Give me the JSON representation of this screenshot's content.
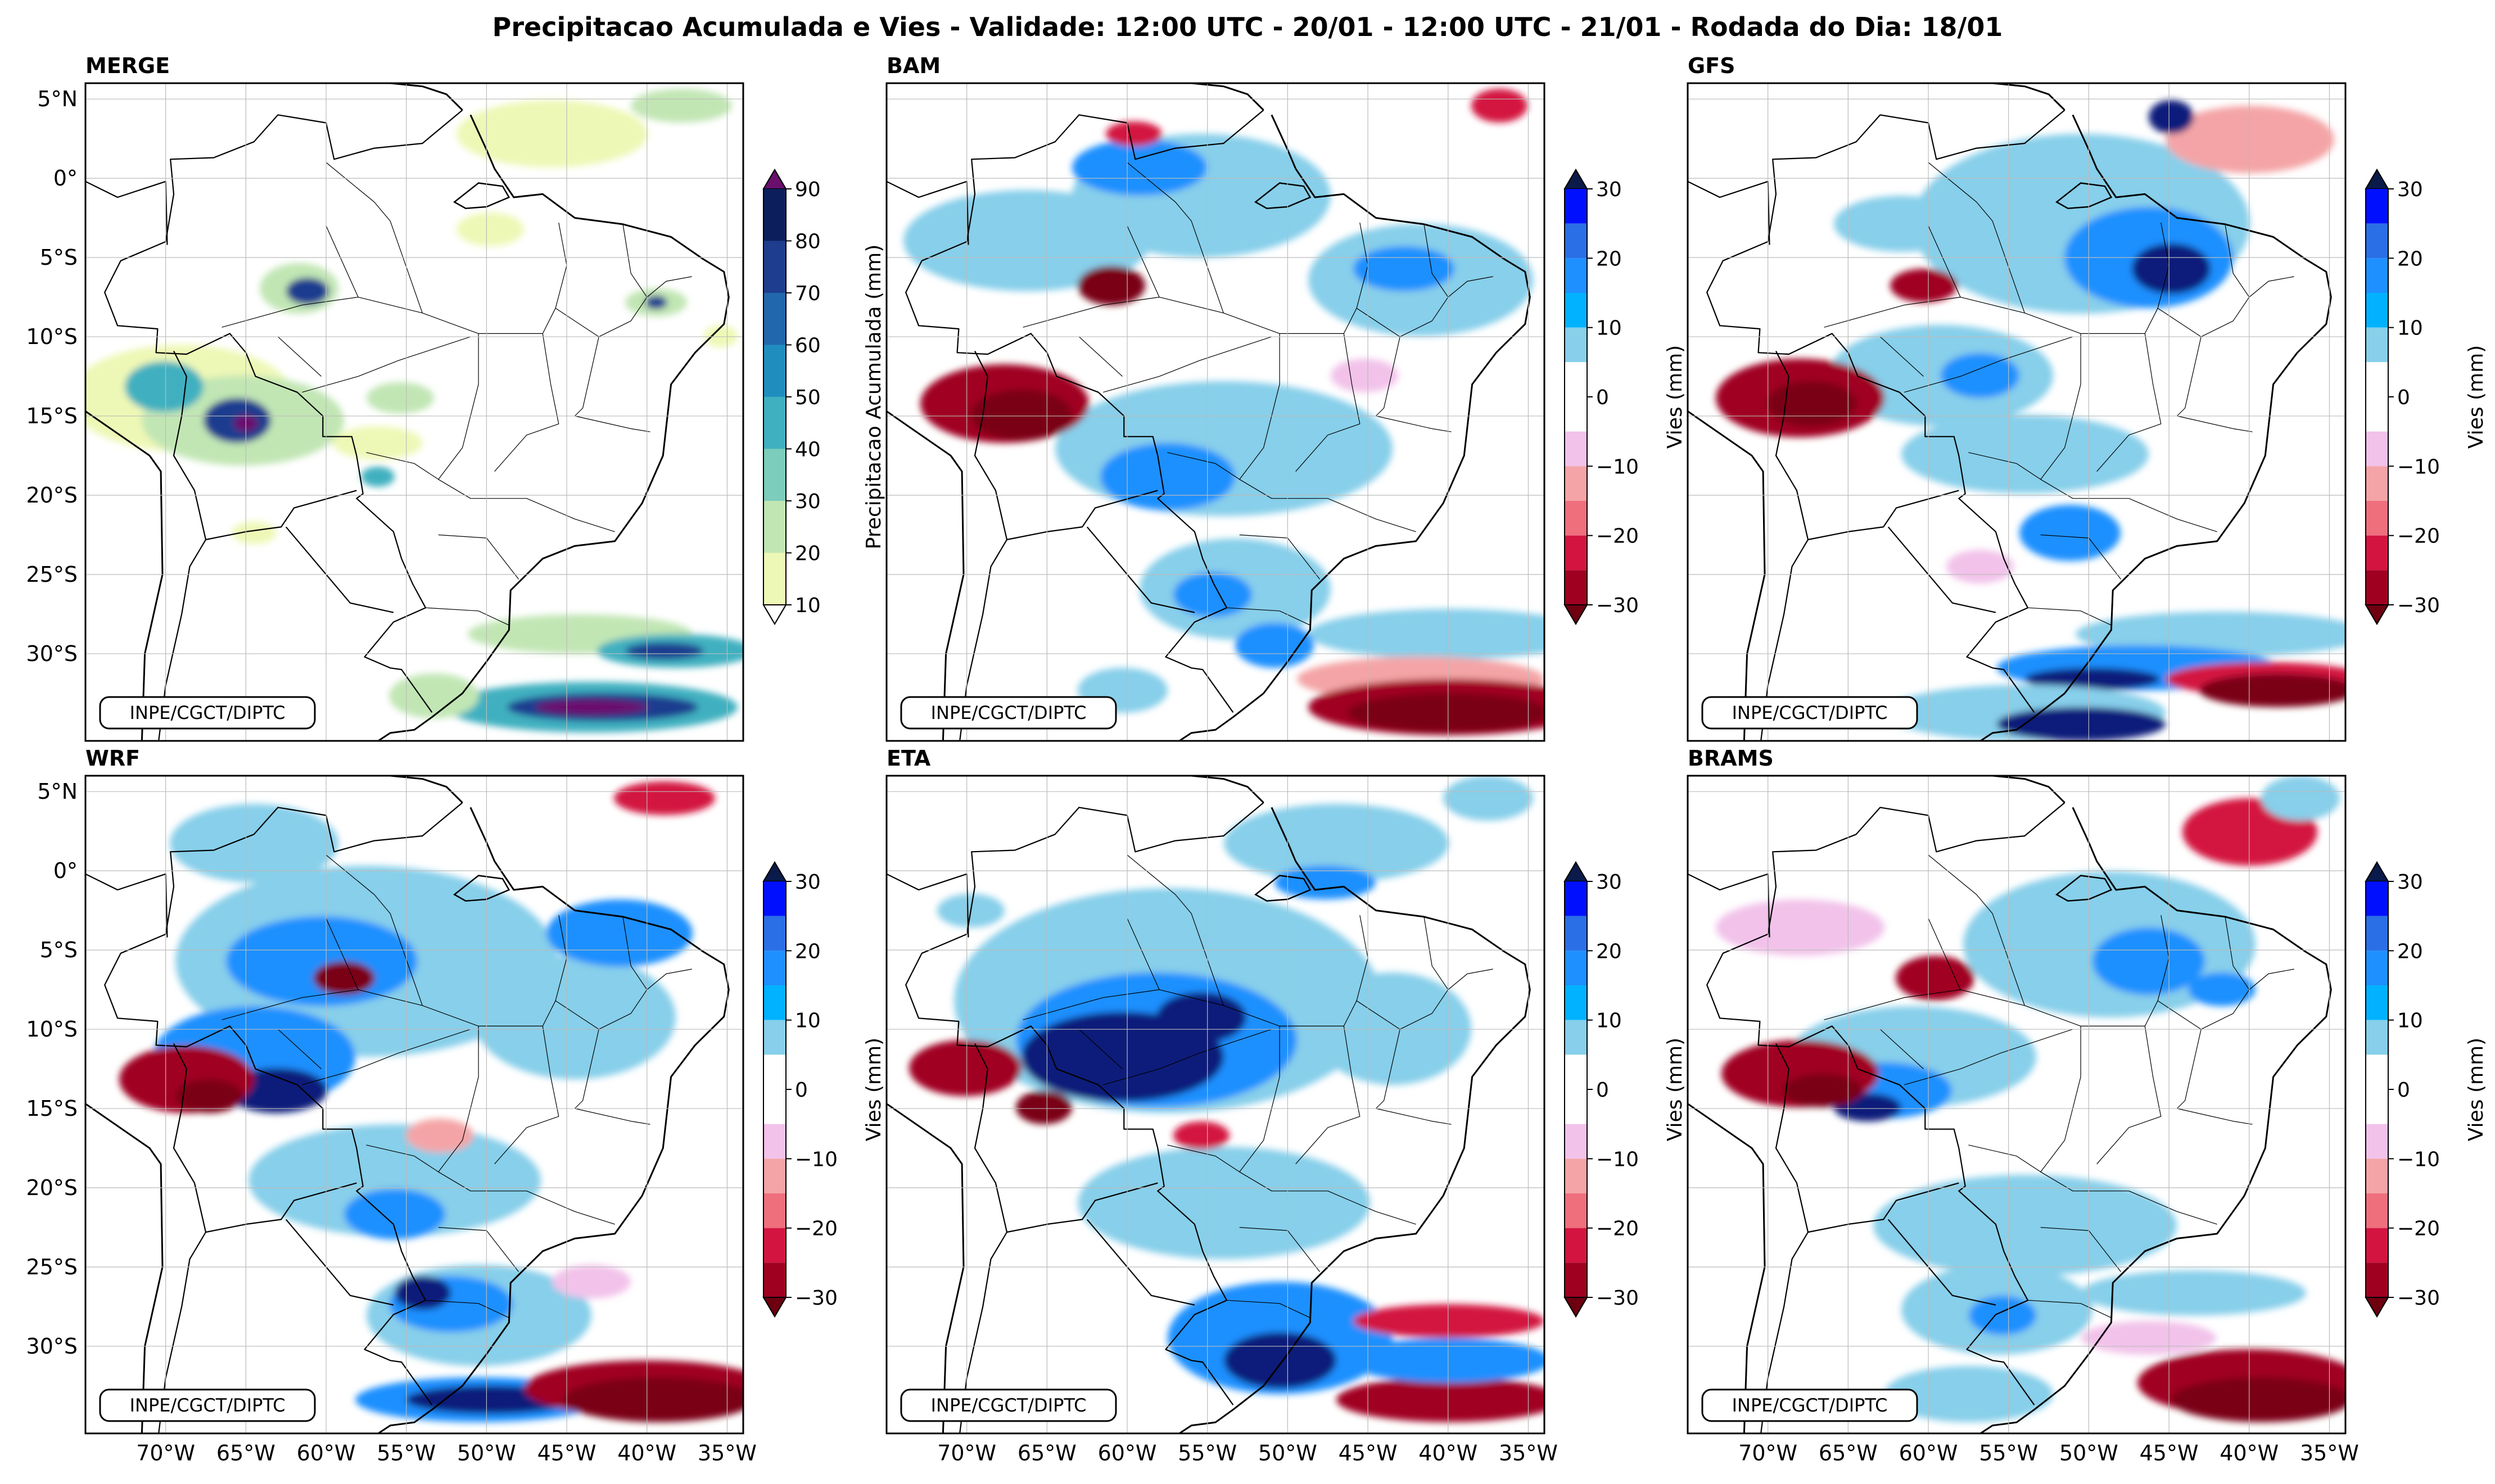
{
  "title": "Precipitacao Acumulada e Vies - Validade: 12:00 UTC - 20/01 - 12:00 UTC - 21/01 - Rodada do Dia: 18/01",
  "credit": "INPE/CGCT/DIPTC",
  "lat_labels": [
    "5°N",
    "0°",
    "5°S",
    "10°S",
    "15°S",
    "20°S",
    "25°S",
    "30°S"
  ],
  "lon_labels": [
    "70°W",
    "65°W",
    "60°W",
    "55°W",
    "50°W",
    "45°W",
    "40°W",
    "35°W"
  ],
  "panels": [
    {
      "id": "merge",
      "title": "MERGE",
      "kind": "precip"
    },
    {
      "id": "bam",
      "title": "BAM",
      "kind": "bias"
    },
    {
      "id": "gfs",
      "title": "GFS",
      "kind": "bias"
    },
    {
      "id": "wrf",
      "title": "WRF",
      "kind": "bias"
    },
    {
      "id": "eta",
      "title": "ETA",
      "kind": "bias"
    },
    {
      "id": "brams",
      "title": "BRAMS",
      "kind": "bias"
    }
  ],
  "colorbars": {
    "precip": {
      "label": "Precipitacao Acumulada (mm)",
      "ticks": [
        "90",
        "80",
        "70",
        "60",
        "50",
        "40",
        "30",
        "20",
        "10"
      ],
      "colors": [
        "#0c1f5c",
        "#1e3d8f",
        "#2167ad",
        "#1f8ebf",
        "#3fb0c0",
        "#7ccdbb",
        "#c1e6b4",
        "#eef8b6"
      ],
      "top_arrow": "#6a0f6e",
      "bottom_arrow": "#ffffff"
    },
    "bias": {
      "label": "Vies (mm)",
      "ticks": [
        "30",
        "20",
        "10",
        "0",
        "−10",
        "−20",
        "−30"
      ],
      "colors": [
        "#0010ff",
        "#2b6fe6",
        "#1e90ff",
        "#00b2ff",
        "#87cfea",
        "#ffffff",
        "#ffffff",
        "#f2c2ea",
        "#f4a4a6",
        "#ef6f7d",
        "#d31440",
        "#a00020"
      ],
      "top_arrow": "#0a1a4a",
      "bottom_arrow": "#6e0010"
    }
  },
  "palette": {
    "precip_light": "#eef8b6",
    "precip_green": "#c1e6b4",
    "precip_teal": "#3fb0c0",
    "precip_dark": "#1e3d8f",
    "precip_purple": "#6a0f6e",
    "wet_light": "#87cfea",
    "wet_mid": "#1e90ff",
    "wet_dark": "#0c1f7a",
    "dry_pink": "#f2c2ea",
    "dry_red": "#e0334f",
    "dry_dark": "#7a0014"
  }
}
